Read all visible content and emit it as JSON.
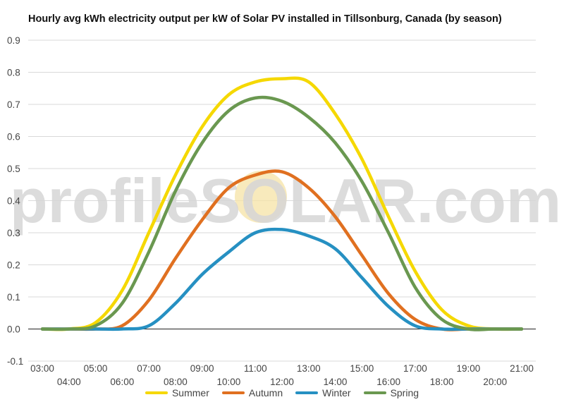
{
  "chart_data": {
    "type": "line",
    "title": "Hourly avg kWh electricity output per kW of Solar PV installed in Tillsonburg, Canada (by season)",
    "watermark": "profileSOLAR.com",
    "xlabel": "",
    "ylabel": "",
    "ylim": [
      -0.1,
      0.9
    ],
    "yticks": [
      "-0.1",
      "0.0",
      "0.1",
      "0.2",
      "0.3",
      "0.4",
      "0.5",
      "0.6",
      "0.7",
      "0.8",
      "0.9"
    ],
    "x": [
      "03:00",
      "04:00",
      "05:00",
      "06:00",
      "07:00",
      "08:00",
      "09:00",
      "10:00",
      "11:00",
      "12:00",
      "13:00",
      "14:00",
      "15:00",
      "16:00",
      "17:00",
      "18:00",
      "19:00",
      "20:00",
      "21:00"
    ],
    "grid": true,
    "legend_position": "bottom",
    "series": [
      {
        "name": "Summer",
        "color": "#f5d800",
        "values": [
          0,
          0,
          0.02,
          0.12,
          0.3,
          0.48,
          0.63,
          0.73,
          0.77,
          0.78,
          0.77,
          0.67,
          0.53,
          0.35,
          0.18,
          0.06,
          0.01,
          0,
          0
        ]
      },
      {
        "name": "Autumn",
        "color": "#e07020",
        "values": [
          0,
          0,
          0,
          0.01,
          0.09,
          0.22,
          0.34,
          0.44,
          0.48,
          0.49,
          0.44,
          0.35,
          0.23,
          0.11,
          0.03,
          0,
          0,
          0,
          0
        ]
      },
      {
        "name": "Winter",
        "color": "#2690c2",
        "values": [
          0,
          0,
          0,
          0,
          0.01,
          0.08,
          0.17,
          0.24,
          0.3,
          0.31,
          0.29,
          0.25,
          0.16,
          0.07,
          0.01,
          0,
          0,
          0,
          0
        ]
      },
      {
        "name": "Spring",
        "color": "#6a9850",
        "values": [
          0,
          0,
          0.01,
          0.08,
          0.24,
          0.43,
          0.58,
          0.68,
          0.72,
          0.71,
          0.66,
          0.58,
          0.46,
          0.3,
          0.13,
          0.03,
          0,
          0,
          0
        ]
      }
    ]
  }
}
